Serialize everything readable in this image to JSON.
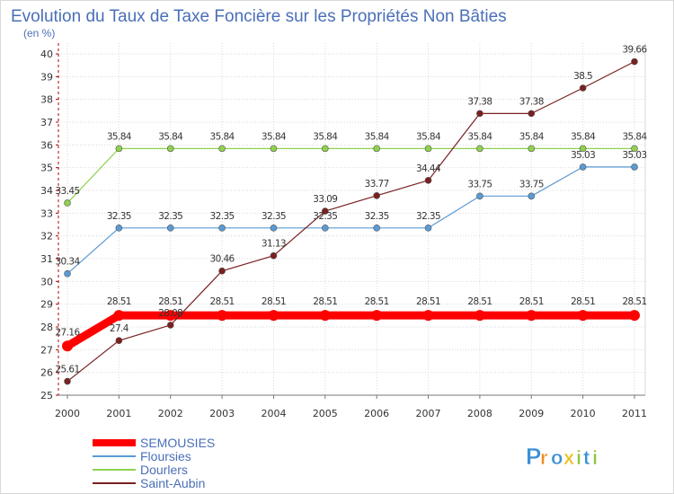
{
  "chart_data": {
    "type": "line",
    "title": "Evolution du Taux de Taxe Foncière sur les Propriétés Non Bâties",
    "subtitle": "(en %)",
    "xlabel": "",
    "ylabel": "",
    "categories": [
      "2000",
      "2001",
      "2002",
      "2003",
      "2004",
      "2005",
      "2006",
      "2007",
      "2008",
      "2009",
      "2010",
      "2011"
    ],
    "ylim": [
      25,
      40
    ],
    "yticks": [
      "25",
      "26",
      "27",
      "28",
      "29",
      "30",
      "31",
      "32",
      "33",
      "34",
      "35",
      "36",
      "37",
      "38",
      "39",
      "40"
    ],
    "grid": true,
    "legend_position": "bottom-left",
    "series": [
      {
        "name": "SEMOUSIES",
        "color": "#ff0000",
        "values": [
          27.16,
          28.51,
          28.51,
          28.51,
          28.51,
          28.51,
          28.51,
          28.51,
          28.51,
          28.51,
          28.51,
          28.51
        ],
        "labels": [
          "27.16",
          "28.51",
          "28.51",
          "28.51",
          "28.51",
          "28.51",
          "28.51",
          "28.51",
          "28.51",
          "28.51",
          "28.51",
          "28.51"
        ]
      },
      {
        "name": "Floursies",
        "color": "#5a9bd5",
        "values": [
          30.34,
          32.35,
          32.35,
          32.35,
          32.35,
          32.35,
          32.35,
          32.35,
          33.75,
          33.75,
          35.03,
          35.03
        ],
        "labels": [
          "30.34",
          "32.35",
          "32.35",
          "32.35",
          "32.35",
          "32.35",
          "32.35",
          "32.35",
          "33.75",
          "33.75",
          "35.03",
          "35.03"
        ]
      },
      {
        "name": "Dourlers",
        "color": "#8fd14f",
        "values": [
          33.45,
          35.84,
          35.84,
          35.84,
          35.84,
          35.84,
          35.84,
          35.84,
          35.84,
          35.84,
          35.84,
          35.84
        ],
        "labels": [
          "33.45",
          "35.84",
          "35.84",
          "35.84",
          "35.84",
          "35.84",
          "35.84",
          "35.84",
          "35.84",
          "35.84",
          "35.84",
          "35.84"
        ]
      },
      {
        "name": "Saint-Aubin",
        "color": "#7a2020",
        "values": [
          25.61,
          27.4,
          28.08,
          30.46,
          31.13,
          33.09,
          33.77,
          34.44,
          37.38,
          37.38,
          38.5,
          39.66
        ],
        "labels": [
          "25.61",
          "27.4",
          "28.08",
          "30.46",
          "31.13",
          "33.09",
          "33.77",
          "34.44",
          "37.38",
          "37.38",
          "38.5",
          "39.66"
        ]
      }
    ]
  },
  "logo": {
    "text": "Proxiti",
    "letters": [
      "P",
      "r",
      "o",
      "x",
      "i",
      "t",
      "i"
    ],
    "colors": [
      "#3b8fd6",
      "#f08a24",
      "#3b8fd6",
      "#e8c21a",
      "#8cc63f",
      "#3b8fd6",
      "#8cc63f"
    ]
  }
}
